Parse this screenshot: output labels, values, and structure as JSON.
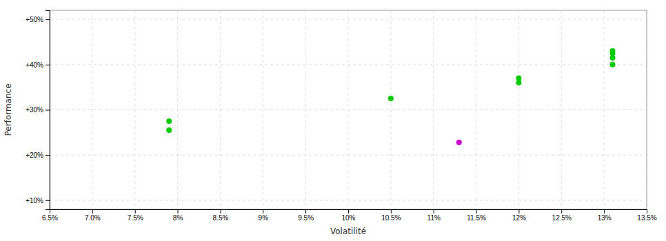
{
  "chart_data": {
    "type": "scatter",
    "xlabel": "Volatilité",
    "ylabel": "Performance",
    "xlim": [
      0.065,
      0.135
    ],
    "ylim": [
      0.08,
      0.52
    ],
    "xticks": [
      {
        "value": 0.065,
        "label": "6.5%"
      },
      {
        "value": 0.07,
        "label": "7.0%"
      },
      {
        "value": 0.075,
        "label": "7.5%"
      },
      {
        "value": 0.08,
        "label": "8%"
      },
      {
        "value": 0.085,
        "label": "8.5%"
      },
      {
        "value": 0.09,
        "label": "9%"
      },
      {
        "value": 0.095,
        "label": "9.5%"
      },
      {
        "value": 0.1,
        "label": "10%"
      },
      {
        "value": 0.105,
        "label": "10.5%"
      },
      {
        "value": 0.11,
        "label": "11%"
      },
      {
        "value": 0.115,
        "label": "11.5%"
      },
      {
        "value": 0.12,
        "label": "12%"
      },
      {
        "value": 0.125,
        "label": "12.5%"
      },
      {
        "value": 0.13,
        "label": "13%"
      },
      {
        "value": 0.135,
        "label": "13.5%"
      }
    ],
    "yticks": [
      {
        "value": 0.1,
        "label": "+10%"
      },
      {
        "value": 0.2,
        "label": "+20%"
      },
      {
        "value": 0.3,
        "label": "+30%"
      },
      {
        "value": 0.4,
        "label": "+40%"
      },
      {
        "value": 0.5,
        "label": "+50%"
      }
    ],
    "grid": true,
    "series": [
      {
        "color": "#00cc00",
        "x": [
          0.079,
          0.079,
          0.105,
          0.12,
          0.12,
          0.131,
          0.131,
          0.131,
          0.131
        ],
        "values": [
          0.275,
          0.255,
          0.325,
          0.37,
          0.36,
          0.43,
          0.425,
          0.415,
          0.4
        ]
      },
      {
        "color": "#cc00cc",
        "x": [
          0.113
        ],
        "values": [
          0.228
        ]
      }
    ]
  }
}
